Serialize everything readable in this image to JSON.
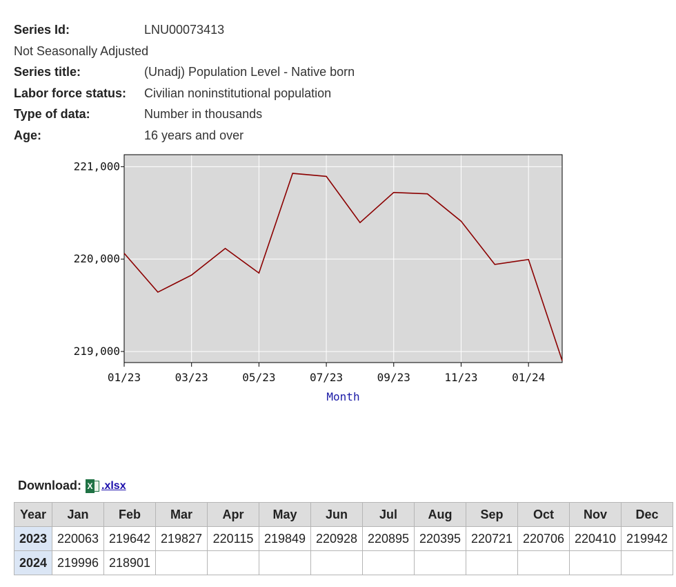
{
  "meta": {
    "series_id_label": "Series Id:",
    "series_id": "LNU00073413",
    "adjustment": "Not Seasonally Adjusted",
    "series_title_label": "Series title:",
    "series_title": "(Unadj) Population Level - Native born",
    "labor_force_label": "Labor force status:",
    "labor_force": "Civilian noninstitutional population",
    "type_label": "Type of data:",
    "type": "Number in thousands",
    "age_label": "Age:",
    "age": "16 years and over"
  },
  "chart_data": {
    "type": "line",
    "title": "",
    "xlabel": "Month",
    "ylabel": "",
    "x": [
      "01/23",
      "02/23",
      "03/23",
      "04/23",
      "05/23",
      "06/23",
      "07/23",
      "08/23",
      "09/23",
      "10/23",
      "11/23",
      "12/23",
      "01/24",
      "02/24"
    ],
    "x_tick_labels": [
      "01/23",
      "03/23",
      "05/23",
      "07/23",
      "09/23",
      "11/23",
      "01/24"
    ],
    "y_tick_values": [
      219000,
      220000,
      221000
    ],
    "y_tick_labels": [
      "219,000",
      "220,000",
      "221,000"
    ],
    "ylim": [
      218880,
      221130
    ],
    "series": [
      {
        "values": [
          220063,
          219642,
          219827,
          220115,
          219849,
          220928,
          220895,
          220395,
          220721,
          220706,
          220410,
          219942,
          219996,
          218901
        ]
      }
    ],
    "grid": true,
    "colors": {
      "line": "#8b0000",
      "plot_bg": "#d9d9d9",
      "grid": "#ffffff"
    }
  },
  "download": {
    "label": "Download:",
    "icon": "excel-icon",
    "link": ".xlsx"
  },
  "table": {
    "headers": [
      "Year",
      "Jan",
      "Feb",
      "Mar",
      "Apr",
      "May",
      "Jun",
      "Jul",
      "Aug",
      "Sep",
      "Oct",
      "Nov",
      "Dec"
    ],
    "rows": [
      {
        "year": "2023",
        "values": [
          "220063",
          "219642",
          "219827",
          "220115",
          "219849",
          "220928",
          "220895",
          "220395",
          "220721",
          "220706",
          "220410",
          "219942"
        ]
      },
      {
        "year": "2024",
        "values": [
          "219996",
          "218901",
          "",
          "",
          "",
          "",
          "",
          "",
          "",
          "",
          "",
          ""
        ]
      }
    ]
  }
}
